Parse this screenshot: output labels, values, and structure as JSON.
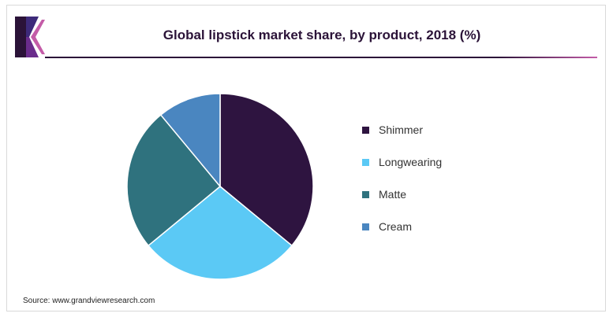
{
  "title": "Global lipstick market share, by product, 2018 (%)",
  "source": "Source: www.grandviewresearch.com",
  "colors": {
    "brand_dark": "#2b1338",
    "brand_accent": "#c45ca8"
  },
  "chart_data": {
    "type": "pie",
    "title": "Global lipstick market share, by product, 2018 (%)",
    "legend_position": "right",
    "start_angle_deg": 0,
    "direction": "clockwise",
    "slices": [
      {
        "label": "Shimmer",
        "value": 36,
        "color": "#2e1440"
      },
      {
        "label": "Longwearing",
        "value": 28,
        "color": "#5bc9f5"
      },
      {
        "label": "Matte",
        "value": 25,
        "color": "#2f727e"
      },
      {
        "label": "Cream",
        "value": 11,
        "color": "#4a86c0"
      }
    ]
  }
}
